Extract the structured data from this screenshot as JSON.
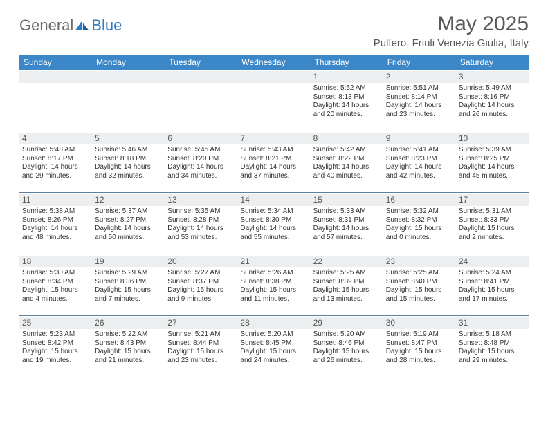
{
  "logo": {
    "gen": "General",
    "blue": "Blue"
  },
  "title": "May 2025",
  "location": "Pulfero, Friuli Venezia Giulia, Italy",
  "colors": {
    "header_bg": "#3b87c8",
    "daynum_bg": "#eceeef",
    "border": "#5a7fa0",
    "text": "#333333",
    "title_text": "#5a5a5a"
  },
  "daysOfWeek": [
    "Sunday",
    "Monday",
    "Tuesday",
    "Wednesday",
    "Thursday",
    "Friday",
    "Saturday"
  ],
  "weeks": [
    [
      {
        "n": "",
        "lines": []
      },
      {
        "n": "",
        "lines": []
      },
      {
        "n": "",
        "lines": []
      },
      {
        "n": "",
        "lines": []
      },
      {
        "n": "1",
        "lines": [
          "Sunrise: 5:52 AM",
          "Sunset: 8:13 PM",
          "Daylight: 14 hours",
          "and 20 minutes."
        ]
      },
      {
        "n": "2",
        "lines": [
          "Sunrise: 5:51 AM",
          "Sunset: 8:14 PM",
          "Daylight: 14 hours",
          "and 23 minutes."
        ]
      },
      {
        "n": "3",
        "lines": [
          "Sunrise: 5:49 AM",
          "Sunset: 8:16 PM",
          "Daylight: 14 hours",
          "and 26 minutes."
        ]
      }
    ],
    [
      {
        "n": "4",
        "lines": [
          "Sunrise: 5:48 AM",
          "Sunset: 8:17 PM",
          "Daylight: 14 hours",
          "and 29 minutes."
        ]
      },
      {
        "n": "5",
        "lines": [
          "Sunrise: 5:46 AM",
          "Sunset: 8:18 PM",
          "Daylight: 14 hours",
          "and 32 minutes."
        ]
      },
      {
        "n": "6",
        "lines": [
          "Sunrise: 5:45 AM",
          "Sunset: 8:20 PM",
          "Daylight: 14 hours",
          "and 34 minutes."
        ]
      },
      {
        "n": "7",
        "lines": [
          "Sunrise: 5:43 AM",
          "Sunset: 8:21 PM",
          "Daylight: 14 hours",
          "and 37 minutes."
        ]
      },
      {
        "n": "8",
        "lines": [
          "Sunrise: 5:42 AM",
          "Sunset: 8:22 PM",
          "Daylight: 14 hours",
          "and 40 minutes."
        ]
      },
      {
        "n": "9",
        "lines": [
          "Sunrise: 5:41 AM",
          "Sunset: 8:23 PM",
          "Daylight: 14 hours",
          "and 42 minutes."
        ]
      },
      {
        "n": "10",
        "lines": [
          "Sunrise: 5:39 AM",
          "Sunset: 8:25 PM",
          "Daylight: 14 hours",
          "and 45 minutes."
        ]
      }
    ],
    [
      {
        "n": "11",
        "lines": [
          "Sunrise: 5:38 AM",
          "Sunset: 8:26 PM",
          "Daylight: 14 hours",
          "and 48 minutes."
        ]
      },
      {
        "n": "12",
        "lines": [
          "Sunrise: 5:37 AM",
          "Sunset: 8:27 PM",
          "Daylight: 14 hours",
          "and 50 minutes."
        ]
      },
      {
        "n": "13",
        "lines": [
          "Sunrise: 5:35 AM",
          "Sunset: 8:28 PM",
          "Daylight: 14 hours",
          "and 53 minutes."
        ]
      },
      {
        "n": "14",
        "lines": [
          "Sunrise: 5:34 AM",
          "Sunset: 8:30 PM",
          "Daylight: 14 hours",
          "and 55 minutes."
        ]
      },
      {
        "n": "15",
        "lines": [
          "Sunrise: 5:33 AM",
          "Sunset: 8:31 PM",
          "Daylight: 14 hours",
          "and 57 minutes."
        ]
      },
      {
        "n": "16",
        "lines": [
          "Sunrise: 5:32 AM",
          "Sunset: 8:32 PM",
          "Daylight: 15 hours",
          "and 0 minutes."
        ]
      },
      {
        "n": "17",
        "lines": [
          "Sunrise: 5:31 AM",
          "Sunset: 8:33 PM",
          "Daylight: 15 hours",
          "and 2 minutes."
        ]
      }
    ],
    [
      {
        "n": "18",
        "lines": [
          "Sunrise: 5:30 AM",
          "Sunset: 8:34 PM",
          "Daylight: 15 hours",
          "and 4 minutes."
        ]
      },
      {
        "n": "19",
        "lines": [
          "Sunrise: 5:29 AM",
          "Sunset: 8:36 PM",
          "Daylight: 15 hours",
          "and 7 minutes."
        ]
      },
      {
        "n": "20",
        "lines": [
          "Sunrise: 5:27 AM",
          "Sunset: 8:37 PM",
          "Daylight: 15 hours",
          "and 9 minutes."
        ]
      },
      {
        "n": "21",
        "lines": [
          "Sunrise: 5:26 AM",
          "Sunset: 8:38 PM",
          "Daylight: 15 hours",
          "and 11 minutes."
        ]
      },
      {
        "n": "22",
        "lines": [
          "Sunrise: 5:25 AM",
          "Sunset: 8:39 PM",
          "Daylight: 15 hours",
          "and 13 minutes."
        ]
      },
      {
        "n": "23",
        "lines": [
          "Sunrise: 5:25 AM",
          "Sunset: 8:40 PM",
          "Daylight: 15 hours",
          "and 15 minutes."
        ]
      },
      {
        "n": "24",
        "lines": [
          "Sunrise: 5:24 AM",
          "Sunset: 8:41 PM",
          "Daylight: 15 hours",
          "and 17 minutes."
        ]
      }
    ],
    [
      {
        "n": "25",
        "lines": [
          "Sunrise: 5:23 AM",
          "Sunset: 8:42 PM",
          "Daylight: 15 hours",
          "and 19 minutes."
        ]
      },
      {
        "n": "26",
        "lines": [
          "Sunrise: 5:22 AM",
          "Sunset: 8:43 PM",
          "Daylight: 15 hours",
          "and 21 minutes."
        ]
      },
      {
        "n": "27",
        "lines": [
          "Sunrise: 5:21 AM",
          "Sunset: 8:44 PM",
          "Daylight: 15 hours",
          "and 23 minutes."
        ]
      },
      {
        "n": "28",
        "lines": [
          "Sunrise: 5:20 AM",
          "Sunset: 8:45 PM",
          "Daylight: 15 hours",
          "and 24 minutes."
        ]
      },
      {
        "n": "29",
        "lines": [
          "Sunrise: 5:20 AM",
          "Sunset: 8:46 PM",
          "Daylight: 15 hours",
          "and 26 minutes."
        ]
      },
      {
        "n": "30",
        "lines": [
          "Sunrise: 5:19 AM",
          "Sunset: 8:47 PM",
          "Daylight: 15 hours",
          "and 28 minutes."
        ]
      },
      {
        "n": "31",
        "lines": [
          "Sunrise: 5:18 AM",
          "Sunset: 8:48 PM",
          "Daylight: 15 hours",
          "and 29 minutes."
        ]
      }
    ]
  ]
}
